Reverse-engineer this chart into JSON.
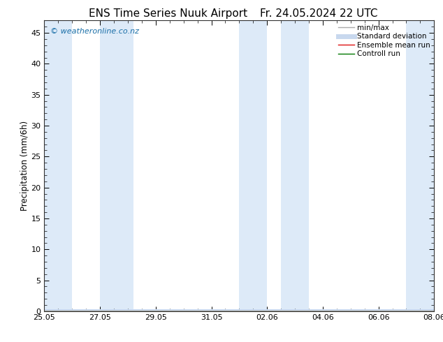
{
  "title_left": "ENS Time Series Nuuk Airport",
  "title_right": "Fr. 24.05.2024 22 UTC",
  "ylabel": "Precipitation (mm/6h)",
  "ylim": [
    0,
    47
  ],
  "yticks": [
    0,
    5,
    10,
    15,
    20,
    25,
    30,
    35,
    40,
    45
  ],
  "background_color": "#ffffff",
  "plot_bg_color": "#ffffff",
  "shaded_band_color": "#ddeaf8",
  "watermark_text": "© weatheronline.co.nz",
  "watermark_color": "#1a6fa8",
  "legend_items": [
    {
      "label": "min/max",
      "color": "#aaaaaa",
      "lw": 1.0,
      "style": "solid"
    },
    {
      "label": "Standard deviation",
      "color": "#c8d8ee",
      "lw": 5,
      "style": "solid"
    },
    {
      "label": "Ensemble mean run",
      "color": "#dd1111",
      "lw": 1.0,
      "style": "solid"
    },
    {
      "label": "Controll run",
      "color": "#007700",
      "lw": 1.0,
      "style": "solid"
    }
  ],
  "shaded_ranges": [
    [
      0,
      1
    ],
    [
      2,
      3
    ],
    [
      7,
      8
    ],
    [
      8.5,
      9.5
    ],
    [
      13,
      14
    ],
    [
      14,
      15
    ]
  ],
  "xtick_labels": [
    "25.05",
    "27.05",
    "29.05",
    "31.05",
    "02.06",
    "04.06",
    "06.06",
    "08.06"
  ],
  "xtick_positions": [
    0,
    2,
    4,
    6,
    8,
    10,
    12,
    14
  ],
  "total_days": 14,
  "xlim": [
    0,
    14
  ],
  "title_fontsize": 11,
  "axis_label_fontsize": 8.5,
  "tick_fontsize": 8,
  "legend_fontsize": 7.5,
  "watermark_fontsize": 8
}
